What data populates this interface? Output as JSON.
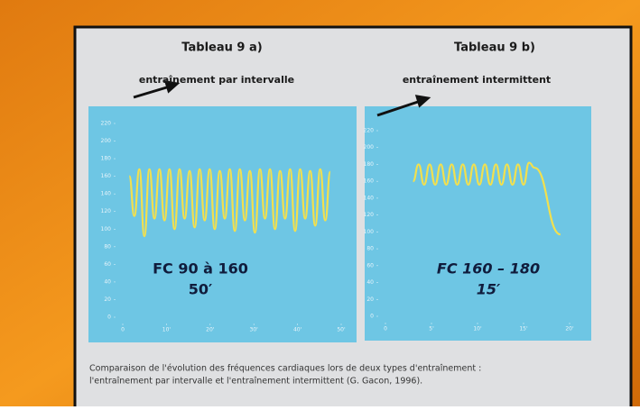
{
  "chart_data": [
    {
      "type": "line",
      "title": "Tableau 9 a)",
      "subtitle": "entraînement par intervalle",
      "annotations": [
        "FC 90 à 160",
        "50′"
      ],
      "x": [
        1.5,
        2.65,
        3.8,
        4.95,
        6.1,
        7.25,
        8.4,
        9.55,
        10.7,
        11.85,
        13,
        14.15,
        15.3,
        16.45,
        17.6,
        18.75,
        19.9,
        21.05,
        22.2,
        23.35,
        24.5,
        25.65,
        26.8,
        27.95,
        29.1,
        30.25,
        31.4,
        32.55,
        33.7,
        34.85,
        36,
        37.15,
        38.3,
        39.45,
        40.6,
        41.75,
        42.9,
        44.05,
        45.2,
        46.35,
        47.5
      ],
      "values": [
        160,
        115,
        168,
        92,
        168,
        112,
        168,
        110,
        168,
        100,
        168,
        112,
        166,
        102,
        168,
        110,
        168,
        100,
        166,
        112,
        168,
        98,
        168,
        110,
        166,
        96,
        168,
        112,
        168,
        100,
        166,
        112,
        168,
        98,
        168,
        112,
        166,
        104,
        168,
        110,
        165
      ],
      "color": "#f2e04e",
      "xlim": [
        0,
        50
      ],
      "xticks": [
        0,
        {
          "value": 10,
          "label": "10'"
        },
        {
          "value": 20,
          "label": "20'"
        },
        {
          "value": 30,
          "label": "30'"
        },
        {
          "value": 40,
          "label": "40'"
        },
        {
          "value": 50,
          "label": "50'"
        }
      ],
      "ylim": [
        0,
        220
      ],
      "yticks": [
        0,
        20,
        40,
        60,
        80,
        100,
        120,
        140,
        160,
        180,
        200,
        220
      ]
    },
    {
      "type": "line",
      "title": "Tableau 9 b)",
      "subtitle": "entraînement intermittent",
      "annotations": [
        "FC 160 – 180",
        "15′"
      ],
      "x": [
        3,
        3.6,
        4.2,
        4.8,
        5.4,
        6,
        6.6,
        7.2,
        7.8,
        8.4,
        9,
        9.6,
        10.2,
        10.8,
        11.4,
        12,
        12.6,
        13.2,
        13.8,
        14.4,
        15,
        15.6,
        16.2,
        19
      ],
      "values": [
        160,
        180,
        156,
        180,
        156,
        180,
        156,
        180,
        156,
        180,
        156,
        180,
        156,
        180,
        156,
        180,
        156,
        180,
        156,
        180,
        156,
        182,
        176,
        97
      ],
      "color": "#f2e04e",
      "xlim": [
        0,
        20
      ],
      "xticks": [
        0,
        {
          "value": 5,
          "label": "5'"
        },
        {
          "value": 10,
          "label": "10'"
        },
        {
          "value": 15,
          "label": "15'"
        },
        {
          "value": 20,
          "label": "20'"
        }
      ],
      "ylim": [
        0,
        220
      ],
      "yticks": [
        0,
        20,
        40,
        60,
        80,
        100,
        120,
        140,
        160,
        180,
        200,
        220
      ]
    }
  ],
  "caption": [
    "Comparaison de l'évolution des fréquences cardiaques lors de deux types d'entraînement :",
    "l'entraînement par intervalle et l'entraînement intermittent  (G. Gacon, 1996)."
  ]
}
